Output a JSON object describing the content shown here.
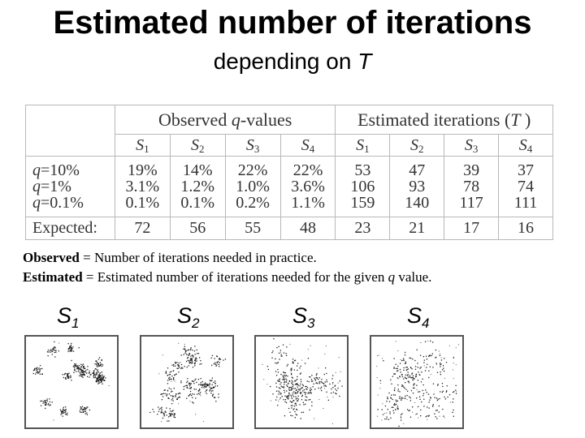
{
  "title": "Estimated number of iterations",
  "subtitle": {
    "prefix": "depending on ",
    "var": "T"
  },
  "table": {
    "observed_header": {
      "prefix": "Observed ",
      "var": "q",
      "suffix": "-values"
    },
    "estimated_header": {
      "prefix": "Estimated iterations (",
      "var": "T",
      "suffix": " )"
    },
    "sets": [
      {
        "letter": "S",
        "sub": "1"
      },
      {
        "letter": "S",
        "sub": "2"
      },
      {
        "letter": "S",
        "sub": "3"
      },
      {
        "letter": "S",
        "sub": "4"
      }
    ],
    "row_labels": [
      {
        "var": "q",
        "text": "=10%"
      },
      {
        "var": "q",
        "text": "=1%"
      },
      {
        "var": "q",
        "text": "=0.1%"
      }
    ],
    "observed": [
      [
        "19%",
        "3.1%",
        "0.1%"
      ],
      [
        "14%",
        "1.2%",
        "0.1%"
      ],
      [
        "22%",
        "1.0%",
        "0.2%"
      ],
      [
        "22%",
        "3.6%",
        "1.1%"
      ]
    ],
    "estimated": [
      [
        "53",
        "106",
        "159"
      ],
      [
        "47",
        "93",
        "140"
      ],
      [
        "39",
        "78",
        "117"
      ],
      [
        "37",
        "74",
        "111"
      ]
    ],
    "expected_label": "Expected:",
    "expected_observed": [
      "72",
      "56",
      "55",
      "48"
    ],
    "expected_estimated": [
      "23",
      "21",
      "17",
      "16"
    ]
  },
  "notes": {
    "line1_bold": "Observed",
    "line1_rest": " = Number of iterations needed in practice.",
    "line2_bold": "Estimated",
    "line2_rest": " = Estimated number of iterations needed for the given ",
    "line2_var": "q",
    "line2_end": " value."
  },
  "datasets": [
    {
      "letter": "S",
      "sub": "1"
    },
    {
      "letter": "S",
      "sub": "2"
    },
    {
      "letter": "S",
      "sub": "3"
    },
    {
      "letter": "S",
      "sub": "4"
    }
  ]
}
